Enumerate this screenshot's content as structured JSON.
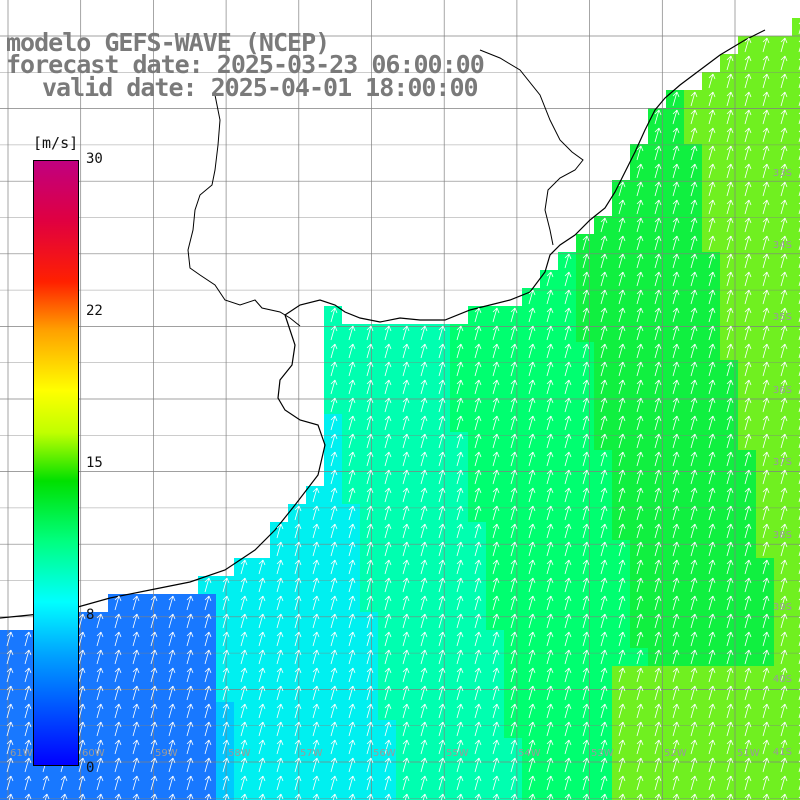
{
  "title": {
    "line1": "modelo GEFS-WAVE (NCEP)",
    "line2": "forecast date: 2025-03-23 06:00:00",
    "line3": "valid date: 2025-04-01 18:00:00"
  },
  "colorbar": {
    "unit": "[m/s]",
    "ticks": [
      "30",
      "22",
      "15",
      "8",
      "0"
    ],
    "colors": [
      "#0000ff",
      "#00a0ff",
      "#00ffff",
      "#00ff80",
      "#00e000",
      "#c0ff00",
      "#ffff00",
      "#ffa000",
      "#ff2000",
      "#c00080"
    ]
  },
  "map": {
    "latitude_labels": [
      "33S",
      "34S",
      "35S",
      "36S",
      "37S",
      "38S",
      "39S",
      "40S",
      "41S"
    ],
    "longitude_labels": [
      "61W",
      "60W",
      "59W",
      "58W",
      "57W",
      "56W",
      "55W",
      "54W",
      "53W",
      "52W",
      "51W"
    ],
    "land_color": "#ffffff",
    "coast_color": "#000000",
    "grid_color": "#808080",
    "wind_direction": "from south-southwest, arrows pointing north-northeast"
  }
}
